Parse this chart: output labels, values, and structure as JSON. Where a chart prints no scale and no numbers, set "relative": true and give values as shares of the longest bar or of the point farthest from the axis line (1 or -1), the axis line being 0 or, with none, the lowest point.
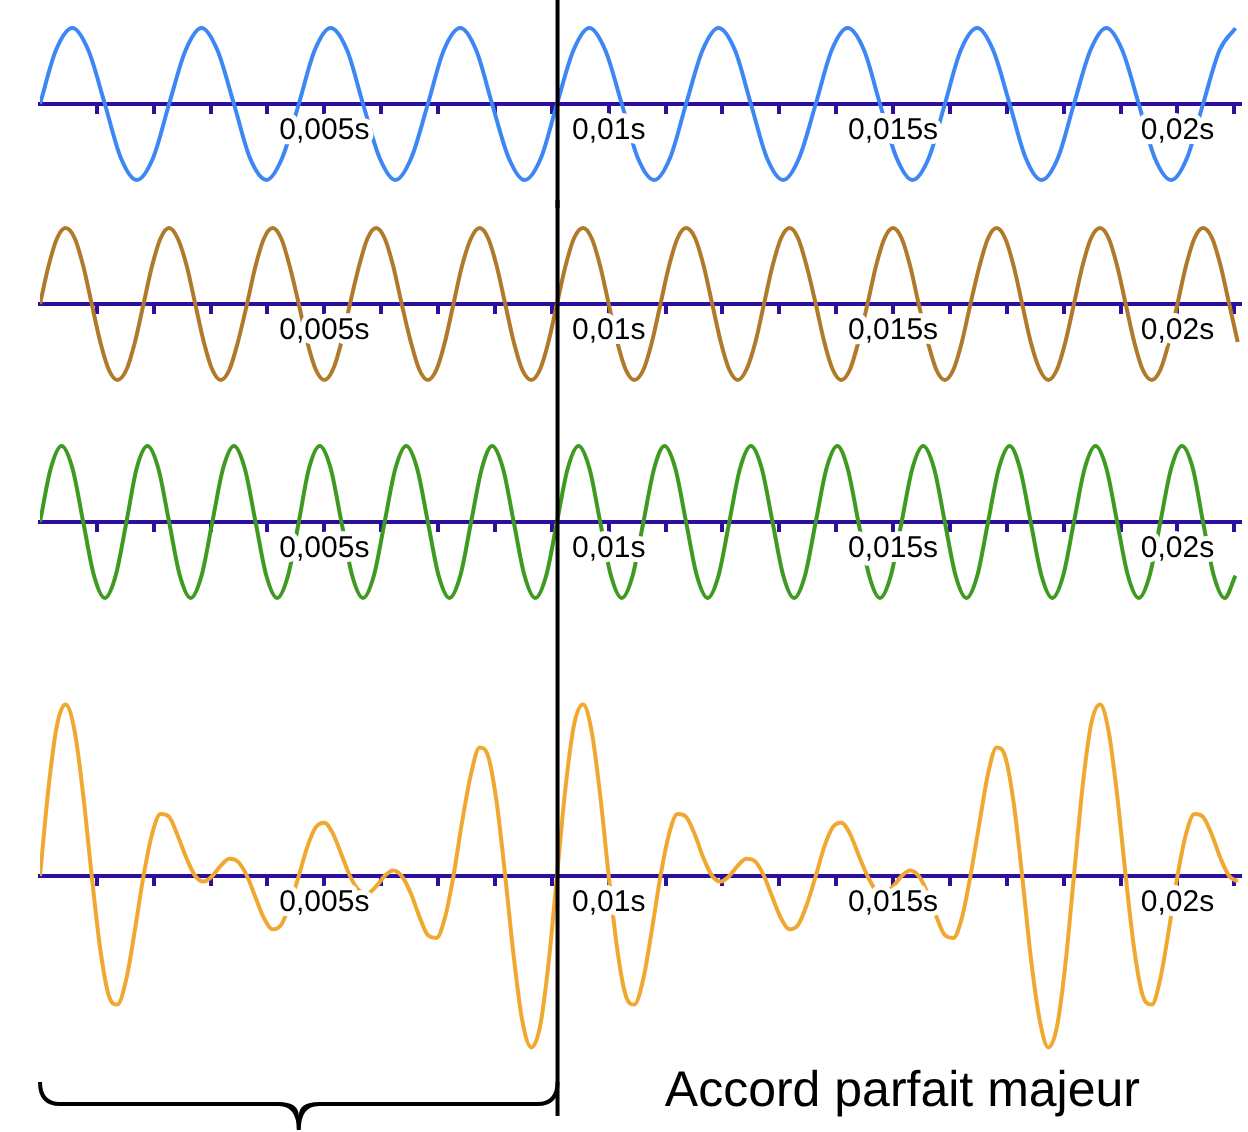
{
  "chart_data": [
    {
      "type": "line",
      "relative": true,
      "marker": "none",
      "xlim": [
        0,
        0.0211
      ],
      "xticks": [
        {
          "value": 0.001,
          "label": null
        },
        {
          "value": 0.002,
          "label": null
        },
        {
          "value": 0.003,
          "label": null
        },
        {
          "value": 0.004,
          "label": null
        },
        {
          "value": 0.005,
          "label": "0,005s"
        },
        {
          "value": 0.006,
          "label": null
        },
        {
          "value": 0.007,
          "label": null
        },
        {
          "value": 0.008,
          "label": null
        },
        {
          "value": 0.009,
          "label": null
        },
        {
          "value": 0.01,
          "label": "0,01s"
        },
        {
          "value": 0.011,
          "label": null
        },
        {
          "value": 0.012,
          "label": null
        },
        {
          "value": 0.013,
          "label": null
        },
        {
          "value": 0.014,
          "label": null
        },
        {
          "value": 0.015,
          "label": "0,015s"
        },
        {
          "value": 0.016,
          "label": null
        },
        {
          "value": 0.017,
          "label": null
        },
        {
          "value": 0.018,
          "label": null
        },
        {
          "value": 0.019,
          "label": null
        },
        {
          "value": 0.02,
          "label": "0,02s"
        },
        {
          "value": 0.021,
          "label": null
        }
      ],
      "ref_lines": [
        {
          "axis": "x",
          "value": 0.0091,
          "color": "#000000"
        }
      ],
      "x": [
        0,
        0.00028,
        0.00057,
        0.00085,
        0.00114,
        0.00142,
        0.0017,
        0.00199,
        0.00227,
        0.00256,
        0.00284,
        0.00312,
        0.00341,
        0.00369,
        0.00398,
        0.00426,
        0.00455,
        0.00483,
        0.00511,
        0.0054,
        0.00568,
        0.00597,
        0.00625,
        0.00653,
        0.00682,
        0.0071,
        0.00739,
        0.00767,
        0.00795,
        0.00824,
        0.00852,
        0.00881,
        0.00909,
        0.00938,
        0.00966,
        0.00994,
        0.01023,
        0.01051,
        0.0108,
        0.01108,
        0.01136,
        0.01165,
        0.01193,
        0.01222,
        0.0125,
        0.01278,
        0.01307,
        0.01335,
        0.01364,
        0.01392,
        0.0142,
        0.01449,
        0.01477,
        0.01506,
        0.01534,
        0.01563,
        0.01591,
        0.01619,
        0.01648,
        0.01676,
        0.01705,
        0.01733,
        0.01761,
        0.0179,
        0.01818,
        0.01847,
        0.01875,
        0.01903,
        0.01932,
        0.0196,
        0.01989,
        0.02017,
        0.02045,
        0.02074,
        0.02102
      ],
      "series": [
        {
          "color": "#3d87f5",
          "values": [
            0,
            0.707,
            1,
            0.707,
            0,
            -0.707,
            -1,
            -0.707,
            0,
            0.707,
            1,
            0.707,
            0,
            -0.707,
            -1,
            -0.707,
            0,
            0.707,
            1,
            0.707,
            0,
            -0.707,
            -1,
            -0.707,
            0,
            0.707,
            1,
            0.707,
            0,
            -0.707,
            -1,
            -0.707,
            0,
            0.707,
            1,
            0.707,
            0,
            -0.707,
            -1,
            -0.707,
            0,
            0.707,
            1,
            0.707,
            0,
            -0.707,
            -1,
            -0.707,
            0,
            0.707,
            1,
            0.707,
            0,
            -0.707,
            -1,
            -0.707,
            0,
            0.707,
            1,
            0.707,
            0,
            -0.707,
            -1,
            -0.707,
            0,
            0.707,
            1,
            0.707,
            0,
            -0.707,
            -1,
            -0.707,
            0,
            0.707,
            1
          ]
        }
      ]
    },
    {
      "type": "line",
      "relative": true,
      "marker": "none",
      "xlim": [
        0,
        0.0211
      ],
      "xticks": [
        {
          "value": 0.001,
          "label": null
        },
        {
          "value": 0.002,
          "label": null
        },
        {
          "value": 0.003,
          "label": null
        },
        {
          "value": 0.004,
          "label": null
        },
        {
          "value": 0.005,
          "label": "0,005s"
        },
        {
          "value": 0.006,
          "label": null
        },
        {
          "value": 0.007,
          "label": null
        },
        {
          "value": 0.008,
          "label": null
        },
        {
          "value": 0.009,
          "label": null
        },
        {
          "value": 0.01,
          "label": "0,01s"
        },
        {
          "value": 0.011,
          "label": null
        },
        {
          "value": 0.012,
          "label": null
        },
        {
          "value": 0.013,
          "label": null
        },
        {
          "value": 0.014,
          "label": null
        },
        {
          "value": 0.015,
          "label": "0,015s"
        },
        {
          "value": 0.016,
          "label": null
        },
        {
          "value": 0.017,
          "label": null
        },
        {
          "value": 0.018,
          "label": null
        },
        {
          "value": 0.019,
          "label": null
        },
        {
          "value": 0.02,
          "label": "0,02s"
        },
        {
          "value": 0.021,
          "label": null
        }
      ],
      "ref_lines": [
        {
          "axis": "x",
          "value": 0.0091,
          "color": "#000000"
        }
      ],
      "x": [
        0,
        0.00015,
        0.0003,
        0.00045,
        0.00061,
        0.00076,
        0.00091,
        0.00106,
        0.00121,
        0.00136,
        0.00152,
        0.00167,
        0.00182,
        0.00197,
        0.00212,
        0.00227,
        0.00242,
        0.00258,
        0.00273,
        0.00288,
        0.00303,
        0.00318,
        0.00333,
        0.00348,
        0.00364,
        0.00379,
        0.00394,
        0.00409,
        0.00424,
        0.00439,
        0.00455,
        0.0047,
        0.00485,
        0.005,
        0.00515,
        0.0053,
        0.00545,
        0.00561,
        0.00576,
        0.00591,
        0.00606,
        0.00621,
        0.00636,
        0.00652,
        0.00667,
        0.00682,
        0.00697,
        0.00712,
        0.00727,
        0.00742,
        0.00758,
        0.00773,
        0.00788,
        0.00803,
        0.00818,
        0.00833,
        0.00848,
        0.00864,
        0.00879,
        0.00894,
        0.00909,
        0.00924,
        0.00939,
        0.00955,
        0.0097,
        0.00985,
        0.01,
        0.01015,
        0.0103,
        0.01045,
        0.01061,
        0.01076,
        0.01091,
        0.01106,
        0.01121,
        0.01136,
        0.01152,
        0.01167,
        0.01182,
        0.01197,
        0.01212,
        0.01227,
        0.01242,
        0.01258,
        0.01273,
        0.01288,
        0.01303,
        0.01318,
        0.01333,
        0.01348,
        0.01364,
        0.01379,
        0.01394,
        0.01409,
        0.01424,
        0.01439,
        0.01455,
        0.0147,
        0.01485,
        0.015,
        0.01515,
        0.0153,
        0.01545,
        0.01561,
        0.01576,
        0.01591,
        0.01606,
        0.01621,
        0.01636,
        0.01652,
        0.01667,
        0.01682,
        0.01697,
        0.01712,
        0.01727,
        0.01742,
        0.01758,
        0.01773,
        0.01788,
        0.01803,
        0.01818,
        0.01833,
        0.01848,
        0.01864,
        0.01879,
        0.01894,
        0.01909,
        0.01924,
        0.01939,
        0.01955,
        0.0197,
        0.01985,
        0.02,
        0.02015,
        0.0203,
        0.02045,
        0.02061,
        0.02076,
        0.02091,
        0.02106
      ],
      "series": [
        {
          "color": "#b07a2a",
          "values": [
            0,
            0.5,
            0.866,
            1,
            0.866,
            0.5,
            0,
            -0.5,
            -0.866,
            -1,
            -0.866,
            -0.5,
            0,
            0.5,
            0.866,
            1,
            0.866,
            0.5,
            0,
            -0.5,
            -0.866,
            -1,
            -0.866,
            -0.5,
            0,
            0.5,
            0.866,
            1,
            0.866,
            0.5,
            0,
            -0.5,
            -0.866,
            -1,
            -0.866,
            -0.5,
            0,
            0.5,
            0.866,
            1,
            0.866,
            0.5,
            0,
            -0.5,
            -0.866,
            -1,
            -0.866,
            -0.5,
            0,
            0.5,
            0.866,
            1,
            0.866,
            0.5,
            0,
            -0.5,
            -0.866,
            -1,
            -0.866,
            -0.5,
            0,
            0.5,
            0.866,
            1,
            0.866,
            0.5,
            0,
            -0.5,
            -0.866,
            -1,
            -0.866,
            -0.5,
            0,
            0.5,
            0.866,
            1,
            0.866,
            0.5,
            0,
            -0.5,
            -0.866,
            -1,
            -0.866,
            -0.5,
            0,
            0.5,
            0.866,
            1,
            0.866,
            0.5,
            0,
            -0.5,
            -0.866,
            -1,
            -0.866,
            -0.5,
            0,
            0.5,
            0.866,
            1,
            0.866,
            0.5,
            0,
            -0.5,
            -0.866,
            -1,
            -0.866,
            -0.5,
            0,
            0.5,
            0.866,
            1,
            0.866,
            0.5,
            0,
            -0.5,
            -0.866,
            -1,
            -0.866,
            -0.5,
            0,
            0.5,
            0.866,
            1,
            0.866,
            0.5,
            0,
            -0.5,
            -0.866,
            -1,
            -0.866,
            -0.5,
            0,
            0.5,
            0.866,
            1,
            0.866,
            0.5,
            0,
            -0.5
          ]
        }
      ]
    },
    {
      "type": "line",
      "relative": true,
      "marker": "none",
      "xlim": [
        0,
        0.0211
      ],
      "xticks": [
        {
          "value": 0.001,
          "label": null
        },
        {
          "value": 0.002,
          "label": null
        },
        {
          "value": 0.003,
          "label": null
        },
        {
          "value": 0.004,
          "label": null
        },
        {
          "value": 0.005,
          "label": "0,005s"
        },
        {
          "value": 0.006,
          "label": null
        },
        {
          "value": 0.007,
          "label": null
        },
        {
          "value": 0.008,
          "label": null
        },
        {
          "value": 0.009,
          "label": null
        },
        {
          "value": 0.01,
          "label": "0,01s"
        },
        {
          "value": 0.011,
          "label": null
        },
        {
          "value": 0.012,
          "label": null
        },
        {
          "value": 0.013,
          "label": null
        },
        {
          "value": 0.014,
          "label": null
        },
        {
          "value": 0.015,
          "label": "0,015s"
        },
        {
          "value": 0.016,
          "label": null
        },
        {
          "value": 0.017,
          "label": null
        },
        {
          "value": 0.018,
          "label": null
        },
        {
          "value": 0.019,
          "label": null
        },
        {
          "value": 0.02,
          "label": "0,02s"
        },
        {
          "value": 0.021,
          "label": null
        }
      ],
      "ref_lines": [
        {
          "axis": "x",
          "value": 0.0091,
          "color": "#000000"
        }
      ],
      "x": [
        0,
        0.00019,
        0.00038,
        0.00057,
        0.00076,
        0.00095,
        0.00114,
        0.00133,
        0.00152,
        0.0017,
        0.00189,
        0.00208,
        0.00227,
        0.00246,
        0.00265,
        0.00284,
        0.00303,
        0.00322,
        0.00341,
        0.0036,
        0.00379,
        0.00398,
        0.00417,
        0.00436,
        0.00455,
        0.00473,
        0.00492,
        0.00511,
        0.0053,
        0.00549,
        0.00568,
        0.00587,
        0.00606,
        0.00625,
        0.00644,
        0.00663,
        0.00682,
        0.00701,
        0.0072,
        0.00739,
        0.00758,
        0.00777,
        0.00795,
        0.00814,
        0.00833,
        0.00852,
        0.00871,
        0.0089,
        0.00909,
        0.00928,
        0.00947,
        0.00966,
        0.00985,
        0.01004,
        0.01023,
        0.01042,
        0.01061,
        0.0108,
        0.01098,
        0.01117,
        0.01136,
        0.01155,
        0.01174,
        0.01193,
        0.01212,
        0.01231,
        0.0125,
        0.01269,
        0.01288,
        0.01307,
        0.01326,
        0.01345,
        0.01364,
        0.01383,
        0.01402,
        0.0142,
        0.01439,
        0.01458,
        0.01477,
        0.01496,
        0.01515,
        0.01534,
        0.01553,
        0.01572,
        0.01591,
        0.0161,
        0.01629,
        0.01648,
        0.01667,
        0.01686,
        0.01705,
        0.01723,
        0.01742,
        0.01761,
        0.0178,
        0.01799,
        0.01818,
        0.01837,
        0.01856,
        0.01875,
        0.01894,
        0.01913,
        0.01932,
        0.01951,
        0.0197,
        0.01989,
        0.02008,
        0.02027,
        0.02045,
        0.02064,
        0.02083,
        0.02102
      ],
      "series": [
        {
          "color": "#3f9a22",
          "values": [
            0,
            0.707,
            1,
            0.707,
            0,
            -0.707,
            -1,
            -0.707,
            0,
            0.707,
            1,
            0.707,
            0,
            -0.707,
            -1,
            -0.707,
            0,
            0.707,
            1,
            0.707,
            0,
            -0.707,
            -1,
            -0.707,
            0,
            0.707,
            1,
            0.707,
            0,
            -0.707,
            -1,
            -0.707,
            0,
            0.707,
            1,
            0.707,
            0,
            -0.707,
            -1,
            -0.707,
            0,
            0.707,
            1,
            0.707,
            0,
            -0.707,
            -1,
            -0.707,
            0,
            0.707,
            1,
            0.707,
            0,
            -0.707,
            -1,
            -0.707,
            0,
            0.707,
            1,
            0.707,
            0,
            -0.707,
            -1,
            -0.707,
            0,
            0.707,
            1,
            0.707,
            0,
            -0.707,
            -1,
            -0.707,
            0,
            0.707,
            1,
            0.707,
            0,
            -0.707,
            -1,
            -0.707,
            0,
            0.707,
            1,
            0.707,
            0,
            -0.707,
            -1,
            -0.707,
            0,
            0.707,
            1,
            0.707,
            0,
            -0.707,
            -1,
            -0.707,
            0,
            0.707,
            1,
            0.707,
            0,
            -0.707,
            -1,
            -0.707,
            0,
            0.707,
            1,
            0.707,
            0,
            -0.707,
            -1,
            -0.707
          ]
        }
      ]
    },
    {
      "type": "line",
      "relative": true,
      "marker": "none",
      "xlim": [
        0,
        0.0211
      ],
      "xticks": [
        {
          "value": 0.001,
          "label": null
        },
        {
          "value": 0.002,
          "label": null
        },
        {
          "value": 0.003,
          "label": null
        },
        {
          "value": 0.004,
          "label": null
        },
        {
          "value": 0.005,
          "label": "0,005s"
        },
        {
          "value": 0.006,
          "label": null
        },
        {
          "value": 0.007,
          "label": null
        },
        {
          "value": 0.008,
          "label": null
        },
        {
          "value": 0.009,
          "label": null
        },
        {
          "value": 0.01,
          "label": "0,01s"
        },
        {
          "value": 0.011,
          "label": null
        },
        {
          "value": 0.012,
          "label": null
        },
        {
          "value": 0.013,
          "label": null
        },
        {
          "value": 0.014,
          "label": null
        },
        {
          "value": 0.015,
          "label": "0,015s"
        },
        {
          "value": 0.016,
          "label": null
        },
        {
          "value": 0.017,
          "label": null
        },
        {
          "value": 0.018,
          "label": null
        },
        {
          "value": 0.019,
          "label": null
        },
        {
          "value": 0.02,
          "label": "0,02s"
        },
        {
          "value": 0.021,
          "label": null
        }
      ],
      "ref_lines": [
        {
          "axis": "x",
          "value": 0.0091,
          "color": "#000000"
        }
      ],
      "annotations": [
        "Accord parfait majeur"
      ],
      "x": [
        0,
        0.00015,
        0.0003,
        0.00045,
        0.00061,
        0.00076,
        0.00091,
        0.00106,
        0.00121,
        0.00136,
        0.00152,
        0.00167,
        0.00182,
        0.00197,
        0.00212,
        0.00227,
        0.00242,
        0.00258,
        0.00273,
        0.00288,
        0.00303,
        0.00318,
        0.00333,
        0.00348,
        0.00364,
        0.00379,
        0.00394,
        0.00409,
        0.00424,
        0.00439,
        0.00455,
        0.0047,
        0.00485,
        0.005,
        0.00515,
        0.0053,
        0.00545,
        0.00561,
        0.00576,
        0.00591,
        0.00606,
        0.00621,
        0.00636,
        0.00652,
        0.00667,
        0.00682,
        0.00697,
        0.00712,
        0.00727,
        0.00742,
        0.00758,
        0.00773,
        0.00788,
        0.00803,
        0.00818,
        0.00833,
        0.00848,
        0.00864,
        0.00879,
        0.00894,
        0.00909,
        0.00924,
        0.00939,
        0.00955,
        0.0097,
        0.00985,
        0.01,
        0.01015,
        0.0103,
        0.01045,
        0.01061,
        0.01076,
        0.01091,
        0.01106,
        0.01121,
        0.01136,
        0.01152,
        0.01167,
        0.01182,
        0.01197,
        0.01212,
        0.01227,
        0.01242,
        0.01258,
        0.01273,
        0.01288,
        0.01303,
        0.01318,
        0.01333,
        0.01348,
        0.01364,
        0.01379,
        0.01394,
        0.01409,
        0.01424,
        0.01439,
        0.01455,
        0.0147,
        0.01485,
        0.015,
        0.01515,
        0.0153,
        0.01545,
        0.01561,
        0.01576,
        0.01591,
        0.01606,
        0.01621,
        0.01636,
        0.01652,
        0.01667,
        0.01682,
        0.01697,
        0.01712,
        0.01727,
        0.01742,
        0.01758,
        0.01773,
        0.01788,
        0.01803,
        0.01818,
        0.01833,
        0.01848,
        0.01864,
        0.01879,
        0.01894,
        0.01909,
        0.01924,
        0.01939,
        0.01955,
        0.0197,
        0.01985,
        0.02,
        0.02015,
        0.0203,
        0.02045,
        0.02061,
        0.02076,
        0.02091,
        0.02106
      ],
      "series": [
        {
          "color": "#f0a830",
          "values": [
            0,
            0.515,
            0.882,
            1,
            0.844,
            0.471,
            0,
            -0.428,
            -0.698,
            -0.75,
            -0.597,
            -0.312,
            0,
            0.244,
            0.361,
            0.345,
            0.236,
            0.101,
            0,
            -0.032,
            0,
            0.061,
            0.101,
            0.084,
            0,
            -0.126,
            -0.247,
            -0.311,
            -0.285,
            -0.17,
            0,
            0.17,
            0.285,
            0.311,
            0.247,
            0.126,
            0,
            -0.084,
            -0.101,
            -0.061,
            0,
            0.032,
            0,
            -0.101,
            -0.236,
            -0.345,
            -0.361,
            -0.244,
            0,
            0.312,
            0.597,
            0.75,
            0.698,
            0.428,
            0,
            -0.471,
            -0.844,
            -1,
            -0.882,
            -0.515,
            0,
            0.515,
            0.882,
            1,
            0.844,
            0.471,
            0,
            -0.428,
            -0.698,
            -0.75,
            -0.597,
            -0.312,
            0,
            0.244,
            0.361,
            0.345,
            0.236,
            0.101,
            0,
            -0.032,
            0,
            0.061,
            0.101,
            0.084,
            0,
            -0.126,
            -0.247,
            -0.311,
            -0.285,
            -0.17,
            0,
            0.17,
            0.285,
            0.311,
            0.247,
            0.126,
            0,
            -0.084,
            -0.101,
            -0.061,
            0,
            0.032,
            0,
            -0.101,
            -0.236,
            -0.345,
            -0.361,
            -0.244,
            0,
            0.312,
            0.597,
            0.75,
            0.698,
            0.428,
            0,
            -0.471,
            -0.844,
            -1,
            -0.882,
            -0.515,
            0,
            0.515,
            0.882,
            1,
            0.844,
            0.471,
            0,
            -0.428,
            -0.698,
            -0.75,
            -0.597,
            -0.312,
            0,
            0.244,
            0.361,
            0.345,
            0.236,
            0.101,
            0,
            -0.032
          ]
        }
      ]
    }
  ]
}
